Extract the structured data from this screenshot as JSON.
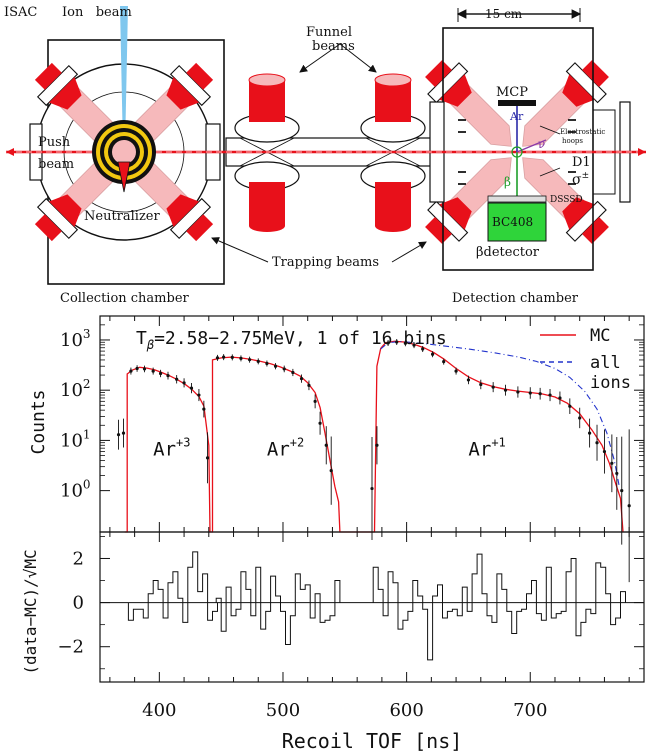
{
  "diagram": {
    "labels": {
      "isac": "ISAC",
      "ion_beam": "Ion   beam",
      "scale": "15 cm",
      "push": "Push",
      "beam": "beam",
      "neutralizer": "Neutralizer",
      "funnel": "Funnel",
      "funnel_beams": "beams",
      "mcp": "MCP",
      "ar": "Ar",
      "electrostatic": "Electrostatic",
      "hoops": "hoops",
      "nu": "ν",
      "beta": "β",
      "d1": "D1",
      "sigma": "σ",
      "sigma_sup": "±",
      "dsssd": "DSSSD",
      "bc408": "BC408",
      "beta_detector": "βdetector",
      "trapping_beams": "Trapping beams",
      "collection_chamber": "Collection chamber",
      "detection_chamber": "Detection chamber"
    },
    "colors": {
      "trap_red": "#e8101a",
      "trap_light": "#f6b9bb",
      "ion_beam": "#7fc7ee",
      "bc408": "#2fd43a",
      "mcp_line": "#2a2aa8",
      "beta_line": "#1e9e2a",
      "nu_line": "#8a3aa8"
    }
  },
  "chart_data": [
    {
      "type": "line",
      "panel": "top",
      "title": "T_β=2.58−2.75MeV, 1 of 16 bins",
      "title_parts": {
        "t": "T",
        "sub": "β",
        "rest": "=2.58−2.75MeV, 1 of 16 bins"
      },
      "ylabel": "Counts",
      "yscale": "log",
      "ylim": [
        0.15,
        3000
      ],
      "xlim": [
        352,
        792
      ],
      "ytick_values": [
        1,
        10,
        100,
        1000
      ],
      "ytick_labels": [
        {
          "base": "10",
          "exp": "0"
        },
        {
          "base": "10",
          "exp": "1"
        },
        {
          "base": "10",
          "exp": "2"
        },
        {
          "base": "10",
          "exp": "3"
        }
      ],
      "legend": {
        "position": "top-right",
        "mc": "MC",
        "all1": "all",
        "all2": "ions"
      },
      "region_labels": [
        {
          "base": "Ar",
          "sup": "+3",
          "x": 395,
          "y": 5
        },
        {
          "base": "Ar",
          "sup": "+2",
          "x": 487,
          "y": 5
        },
        {
          "base": "Ar",
          "sup": "+1",
          "x": 650,
          "y": 5
        }
      ],
      "series": [
        {
          "name": "MC",
          "color": "#e8101a",
          "style": "solid",
          "points": [
            [
              372,
              0.15
            ],
            [
              374,
              0.15
            ],
            [
              374,
              210
            ],
            [
              378,
              250
            ],
            [
              384,
              285
            ],
            [
              390,
              275
            ],
            [
              396,
              255
            ],
            [
              402,
              225
            ],
            [
              408,
              195
            ],
            [
              414,
              165
            ],
            [
              420,
              135
            ],
            [
              426,
              105
            ],
            [
              432,
              75
            ],
            [
              436,
              48
            ],
            [
              438,
              20
            ],
            [
              440,
              8
            ],
            [
              441,
              0.15
            ],
            [
              443,
              0.15
            ],
            [
              443,
              400
            ],
            [
              450,
              440
            ],
            [
              458,
              455
            ],
            [
              466,
              440
            ],
            [
              474,
              410
            ],
            [
              482,
              375
            ],
            [
              490,
              335
            ],
            [
              498,
              290
            ],
            [
              506,
              240
            ],
            [
              514,
              190
            ],
            [
              520,
              140
            ],
            [
              526,
              90
            ],
            [
              530,
              45
            ],
            [
              534,
              14
            ],
            [
              538,
              4
            ],
            [
              542,
              1.2
            ],
            [
              545,
              0.6
            ],
            [
              546,
              0.15
            ],
            [
              574,
              0.15
            ],
            [
              576,
              300
            ],
            [
              579,
              680
            ],
            [
              583,
              880
            ],
            [
              590,
              940
            ],
            [
              598,
              910
            ],
            [
              606,
              820
            ],
            [
              614,
              700
            ],
            [
              622,
              560
            ],
            [
              630,
              420
            ],
            [
              640,
              270
            ],
            [
              650,
              185
            ],
            [
              660,
              140
            ],
            [
              670,
              118
            ],
            [
              680,
              104
            ],
            [
              690,
              96
            ],
            [
              700,
              90
            ],
            [
              710,
              84
            ],
            [
              720,
              73
            ],
            [
              730,
              55
            ],
            [
              740,
              34
            ],
            [
              750,
              16
            ],
            [
              758,
              8
            ],
            [
              764,
              3.5
            ],
            [
              769,
              1.4
            ],
            [
              773,
              0.7
            ],
            [
              775,
              0.15
            ]
          ]
        },
        {
          "name": "all ions",
          "color": "#2233cc",
          "style": "dashed",
          "points": [
            [
              579,
              660
            ],
            [
              585,
              880
            ],
            [
              595,
              930
            ],
            [
              610,
              870
            ],
            [
              630,
              760
            ],
            [
              650,
              660
            ],
            [
              670,
              560
            ],
            [
              690,
              460
            ],
            [
              705,
              375
            ],
            [
              720,
              270
            ],
            [
              732,
              180
            ],
            [
              744,
              95
            ],
            [
              754,
              42
            ],
            [
              762,
              14
            ],
            [
              768,
              4
            ],
            [
              772,
              1.2
            ]
          ]
        },
        {
          "name": "data",
          "color": "#111111",
          "style": "points",
          "points": [
            [
              367,
              13
            ],
            [
              371,
              14
            ],
            [
              377,
              240
            ],
            [
              382,
              270
            ],
            [
              388,
              265
            ],
            [
              395,
              240
            ],
            [
              401,
              215
            ],
            [
              407,
              195
            ],
            [
              414,
              165
            ],
            [
              420,
              140
            ],
            [
              426,
              110
            ],
            [
              432,
              80
            ],
            [
              436,
              42
            ],
            [
              439,
              4.5
            ],
            [
              447,
              440
            ],
            [
              452,
              455
            ],
            [
              459,
              450
            ],
            [
              466,
              430
            ],
            [
              473,
              405
            ],
            [
              480,
              375
            ],
            [
              487,
              340
            ],
            [
              494,
              300
            ],
            [
              501,
              265
            ],
            [
              508,
              225
            ],
            [
              515,
              170
            ],
            [
              521,
              125
            ],
            [
              526,
              60
            ],
            [
              530,
              22
            ],
            [
              535,
              8
            ],
            [
              539,
              2.5
            ],
            [
              572,
              1.1
            ],
            [
              576,
              8
            ],
            [
              585,
              870
            ],
            [
              592,
              910
            ],
            [
              599,
              860
            ],
            [
              606,
              790
            ],
            [
              613,
              660
            ],
            [
              621,
              520
            ],
            [
              630,
              370
            ],
            [
              640,
              240
            ],
            [
              650,
              160
            ],
            [
              660,
              130
            ],
            [
              670,
              115
            ],
            [
              680,
              100
            ],
            [
              690,
              92
            ],
            [
              700,
              88
            ],
            [
              708,
              85
            ],
            [
              716,
              80
            ],
            [
              724,
              70
            ],
            [
              732,
              48
            ],
            [
              740,
              28
            ],
            [
              748,
              14
            ],
            [
              754,
              9
            ],
            [
              760,
              6
            ],
            [
              766,
              3.5
            ],
            [
              770,
              2.2
            ],
            [
              774,
              1.0
            ],
            [
              780,
              0.5
            ]
          ]
        }
      ]
    },
    {
      "type": "line",
      "panel": "bottom",
      "ylabel": "(data−MC)/√MC",
      "xlabel": "Recoil TOF [ns]",
      "ylim": [
        -3.6,
        3.2
      ],
      "xlim": [
        352,
        792
      ],
      "yticks": [
        2,
        0,
        -2
      ],
      "ytick_labels": [
        "2",
        "0",
        "−2"
      ],
      "xticks": [
        400,
        500,
        600,
        700
      ],
      "xtick_labels": [
        "400",
        "500",
        "600",
        "700"
      ],
      "steps": [
        {
          "start": 375,
          "width": 4,
          "values": [
            -0.8,
            -0.3,
            -0.3,
            -0.7,
            0.4,
            1.0,
            0.6,
            -0.7,
            0.9,
            1.4,
            0.2,
            -0.9,
            1.6,
            2.3,
            0.5,
            1.3,
            -0.8,
            -0.4
          ]
        },
        {
          "start": 446,
          "width": 4,
          "values": [
            0.2,
            -1.3,
            0.7,
            -0.6,
            -0.3,
            1.4,
            0.6,
            -0.6,
            1.6,
            -1.2,
            -0.4,
            1.2,
            0.3,
            -0.4,
            -1.9,
            -0.6,
            1.3,
            0.6,
            0.8,
            -0.7,
            0.4,
            -0.9,
            -0.8,
            -0.6,
            1.0
          ]
        },
        {
          "start": 573,
          "width": 4,
          "values": [
            1.6,
            0.6,
            -0.6,
            1.4,
            0.9,
            -1.2,
            -0.8,
            -0.4,
            1.0,
            0.3,
            -0.3,
            -2.6,
            0.3,
            0.8,
            -0.7,
            -0.4,
            -0.3,
            -0.6,
            0.7,
            -0.4,
            1.3,
            2.2,
            0.4,
            -0.6,
            -0.9,
            1.3,
            0.6,
            -0.4,
            -1.4,
            -0.4,
            -0.3,
            0.4,
            1.0,
            -0.5,
            -0.8,
            1.6,
            -0.7,
            -0.5,
            -0.4,
            1.4,
            2.0,
            -1.5,
            -0.9,
            -0.3,
            -0.5,
            1.8,
            1.6,
            0.4,
            -1.0,
            -0.7,
            0.5
          ]
        }
      ]
    }
  ]
}
